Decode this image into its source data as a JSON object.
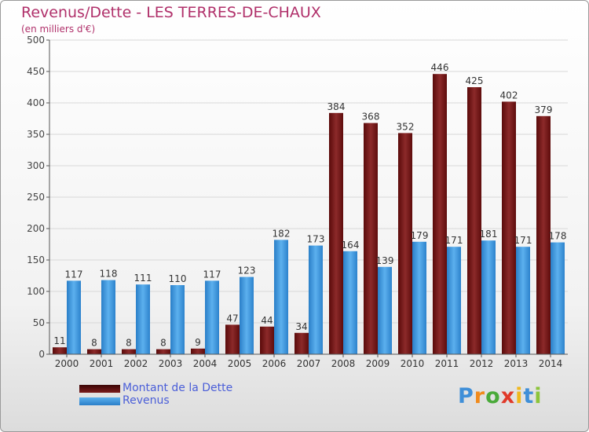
{
  "title": "Revenus/Dette - LES TERRES-DE-CHAUX",
  "subtitle": "(en milliers d'€)",
  "chart_data": {
    "type": "bar",
    "categories": [
      "2000",
      "2001",
      "2002",
      "2003",
      "2004",
      "2005",
      "2006",
      "2007",
      "2008",
      "2009",
      "2010",
      "2011",
      "2012",
      "2013",
      "2014"
    ],
    "series": [
      {
        "name": "Montant de la Dette",
        "color": "#7a1b1b",
        "values": [
          11,
          8,
          8,
          8,
          9,
          47,
          44,
          34,
          384,
          368,
          352,
          446,
          425,
          402,
          379
        ]
      },
      {
        "name": "Revenus",
        "color": "#3f9ae0",
        "values": [
          117,
          118,
          111,
          110,
          117,
          123,
          182,
          173,
          164,
          139,
          179,
          171,
          181,
          171,
          178
        ]
      }
    ],
    "ylim": [
      0,
      500
    ],
    "yticks": [
      0,
      50,
      100,
      150,
      200,
      250,
      300,
      350,
      400,
      450,
      500
    ],
    "grid": true,
    "legend_position": "bottom-left"
  },
  "legend": {
    "items": [
      "Montant de la Dette",
      "Revenus"
    ]
  },
  "logo": {
    "letters": [
      "P",
      "r",
      "o",
      "x",
      "i",
      "t",
      "i"
    ],
    "colors": [
      "#3f8fd8",
      "#f08a1c",
      "#4aaa3a",
      "#e03a2a",
      "#f0b81c",
      "#3f8fd8",
      "#8cc43a"
    ]
  }
}
